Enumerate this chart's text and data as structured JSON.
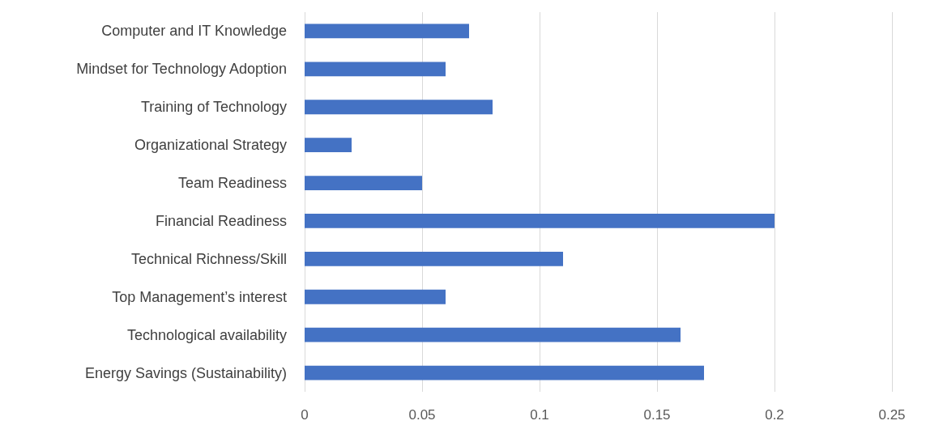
{
  "chart_data": {
    "type": "bar",
    "orientation": "horizontal",
    "categories": [
      "Computer and IT Knowledge",
      "Mindset for Technology Adoption",
      "Training of Technology",
      "Organizational Strategy",
      "Team Readiness",
      "Financial Readiness",
      "Technical Richness/Skill",
      "Top Management’s interest",
      "Technological availability",
      "Energy Savings (Sustainability)"
    ],
    "values": [
      0.07,
      0.06,
      0.08,
      0.02,
      0.05,
      0.2,
      0.11,
      0.06,
      0.16,
      0.17
    ],
    "color": "#4472c4",
    "xlim": [
      0,
      0.25
    ],
    "xticks": [
      0,
      0.05,
      0.1,
      0.15,
      0.2,
      0.25
    ],
    "grid": "x"
  }
}
